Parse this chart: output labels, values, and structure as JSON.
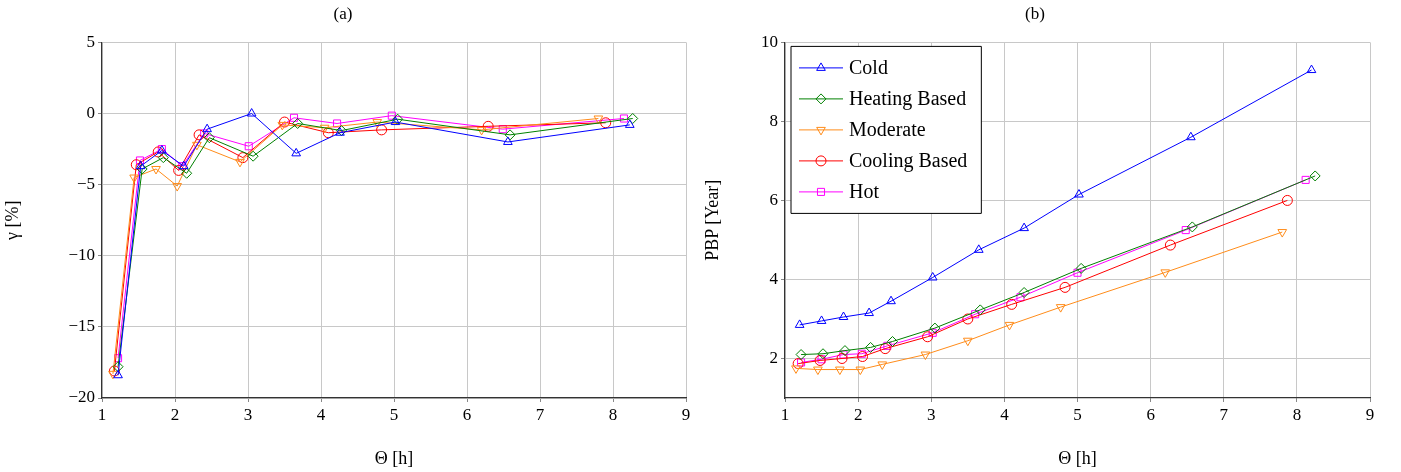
{
  "chart_data": [
    {
      "type": "line",
      "title": "(a)",
      "xlabel": "Θ [h]",
      "ylabel": "γ [%]",
      "xlim": [
        1,
        9
      ],
      "xticks": [
        1,
        2,
        3,
        4,
        5,
        6,
        7,
        8,
        9
      ],
      "ylim": [
        -20,
        5
      ],
      "yticks": [
        {
          "value": -20,
          "label": "−20"
        },
        {
          "value": -15,
          "label": "−15"
        },
        {
          "value": -10,
          "label": "−10"
        },
        {
          "value": -5,
          "label": "−5"
        },
        0,
        5
      ],
      "grid": true,
      "legend": false,
      "line_style": "solid",
      "series": [
        {
          "color": "#0000ff",
          "marker": "triangle",
          "x": [
            1.22,
            1.53,
            1.82,
            2.12,
            2.44,
            3.05,
            3.66,
            4.26,
            5.02,
            6.56,
            8.23
          ],
          "values": [
            -18.4,
            -3.7,
            -2.6,
            -3.7,
            -1.1,
            0,
            -2.8,
            -1.35,
            -0.6,
            -2.0,
            -0.8
          ]
        },
        {
          "color": "#008000",
          "marker": "diamond",
          "x": [
            1.22,
            1.55,
            1.84,
            2.16,
            2.47,
            3.07,
            3.68,
            4.28,
            5.05,
            6.59,
            8.27
          ],
          "values": [
            -17.8,
            -3.9,
            -3.1,
            -4.2,
            -1.7,
            -3.0,
            -0.7,
            -1.2,
            -0.4,
            -1.5,
            -0.35
          ]
        },
        {
          "color": "#ff8c1a",
          "marker": "triangle-down",
          "x": [
            1.15,
            1.44,
            1.74,
            2.03,
            2.3,
            2.89,
            3.47,
            4.05,
            4.77,
            6.2,
            7.8
          ],
          "values": [
            -18.3,
            -4.5,
            -3.9,
            -5.1,
            -2.2,
            -3.4,
            -0.8,
            -1.0,
            -0.6,
            -1.15,
            -0.35
          ]
        },
        {
          "color": "#ff0000",
          "marker": "circle",
          "x": [
            1.17,
            1.47,
            1.77,
            2.05,
            2.33,
            2.93,
            3.5,
            4.1,
            4.83,
            6.29,
            7.9
          ],
          "values": [
            -18.1,
            -3.6,
            -2.7,
            -4.0,
            -1.5,
            -3.1,
            -0.6,
            -1.35,
            -1.15,
            -0.9,
            -0.65
          ]
        },
        {
          "color": "#ff00ff",
          "marker": "square",
          "x": [
            1.22,
            1.52,
            1.82,
            2.1,
            2.4,
            3.01,
            3.63,
            4.22,
            4.97,
            6.49,
            8.15
          ],
          "values": [
            -17.2,
            -3.3,
            -2.5,
            -3.7,
            -1.4,
            -2.3,
            -0.3,
            -0.7,
            -0.15,
            -1.1,
            -0.35
          ]
        }
      ]
    },
    {
      "type": "line",
      "title": "(b)",
      "xlabel": "Θ [h]",
      "ylabel": "PBP [Year]",
      "xlim": [
        1,
        9
      ],
      "xticks": [
        1,
        2,
        3,
        4,
        5,
        6,
        7,
        8,
        9
      ],
      "ylim": [
        1,
        10
      ],
      "yticks": [
        2,
        4,
        6,
        8,
        10
      ],
      "grid": true,
      "legend": "top left",
      "line_style": "solid",
      "series": [
        {
          "name": "Cold",
          "color": "#0000ff",
          "marker": "triangle",
          "x": [
            1.2,
            1.5,
            1.8,
            2.15,
            2.45,
            3.02,
            3.65,
            4.27,
            5.02,
            6.55,
            8.2
          ],
          "values": [
            2.85,
            2.95,
            3.05,
            3.15,
            3.45,
            4.05,
            4.75,
            5.3,
            6.15,
            7.6,
            9.3
          ]
        },
        {
          "name": "Heating Based",
          "color": "#008000",
          "marker": "diamond",
          "x": [
            1.22,
            1.52,
            1.82,
            2.17,
            2.47,
            3.05,
            3.67,
            4.27,
            5.05,
            6.57,
            8.25
          ],
          "values": [
            2.1,
            2.12,
            2.2,
            2.28,
            2.43,
            2.77,
            3.23,
            3.67,
            4.28,
            5.33,
            6.62
          ]
        },
        {
          "name": "Moderate",
          "color": "#ff8c1a",
          "marker": "triangle-down",
          "x": [
            1.15,
            1.45,
            1.75,
            2.03,
            2.33,
            2.92,
            3.5,
            4.07,
            4.77,
            6.2,
            7.8
          ],
          "values": [
            1.75,
            1.72,
            1.72,
            1.72,
            1.85,
            2.1,
            2.45,
            2.85,
            3.3,
            4.18,
            5.2
          ]
        },
        {
          "name": "Cooling Based",
          "color": "#ff0000",
          "marker": "circle",
          "x": [
            1.18,
            1.48,
            1.78,
            2.06,
            2.37,
            2.95,
            3.5,
            4.1,
            4.83,
            6.27,
            7.87
          ],
          "values": [
            1.87,
            1.95,
            2.0,
            2.05,
            2.25,
            2.55,
            3.0,
            3.37,
            3.8,
            4.87,
            6.0
          ]
        },
        {
          "name": "Hot",
          "color": "#ff00ff",
          "marker": "square",
          "x": [
            1.22,
            1.5,
            1.8,
            2.05,
            2.4,
            3.02,
            3.6,
            4.22,
            5.0,
            6.48,
            8.12
          ],
          "values": [
            1.9,
            1.98,
            2.1,
            2.12,
            2.32,
            2.65,
            3.12,
            3.55,
            4.17,
            5.25,
            6.52
          ]
        }
      ]
    }
  ]
}
